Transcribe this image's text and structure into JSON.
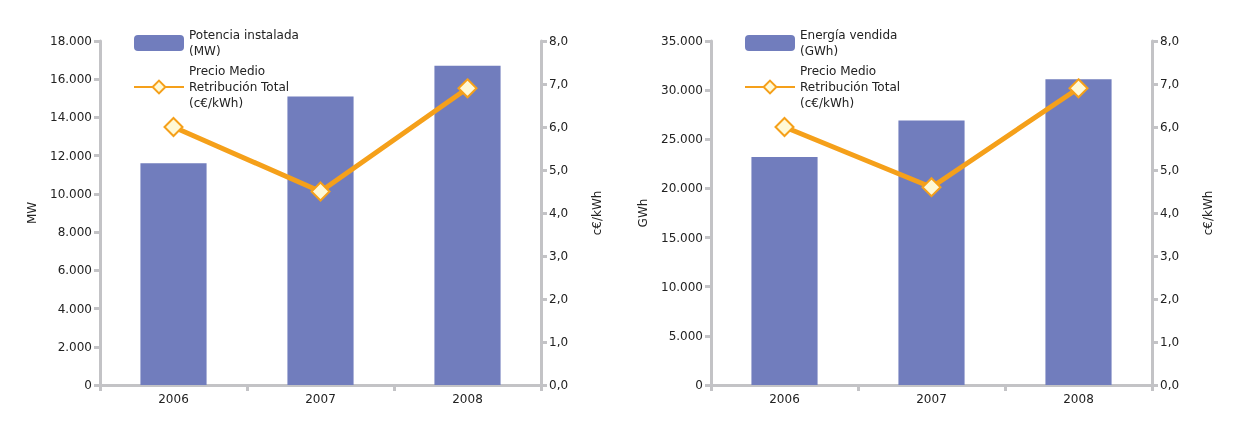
{
  "chart_data": [
    {
      "type": "bar",
      "categories": [
        "2006",
        "2007",
        "2008"
      ],
      "ylabel": "MW",
      "y2label": "c€/kWh",
      "legend": "top left",
      "grid": false,
      "marker": "diamond",
      "ylim": [
        0,
        18000
      ],
      "yticks": [
        {
          "value": 0,
          "label": "0"
        },
        {
          "value": 2000,
          "label": "2.000"
        },
        {
          "value": 4000,
          "label": "4.000"
        },
        {
          "value": 6000,
          "label": "6.000"
        },
        {
          "value": 8000,
          "label": "8.000"
        },
        {
          "value": 10000,
          "label": "10.000"
        },
        {
          "value": 12000,
          "label": "12.000"
        },
        {
          "value": 14000,
          "label": "14.000"
        },
        {
          "value": 16000,
          "label": "16.000"
        },
        {
          "value": 18000,
          "label": "18.000"
        }
      ],
      "y2lim": [
        0,
        8
      ],
      "y2ticks": [
        {
          "value": 0,
          "label": "0,0"
        },
        {
          "value": 1,
          "label": "1,0"
        },
        {
          "value": 2,
          "label": "2,0"
        },
        {
          "value": 3,
          "label": "3,0"
        },
        {
          "value": 4,
          "label": "4,0"
        },
        {
          "value": 5,
          "label": "5,0"
        },
        {
          "value": 6,
          "label": "6,0"
        },
        {
          "value": 7,
          "label": "7,0"
        },
        {
          "value": 8,
          "label": "8,0"
        }
      ],
      "series": [
        {
          "name": "Potencia instalada (MW)",
          "color": "#717dbd",
          "values": [
            11600,
            15100,
            16700
          ]
        },
        {
          "name": "Precio Medio Retribución Total (c€/kWh)",
          "type": "line",
          "axis": "y2",
          "color": "#f5a01a",
          "values": [
            6.0,
            4.5,
            6.9
          ]
        }
      ]
    },
    {
      "type": "bar",
      "categories": [
        "2006",
        "2007",
        "2008"
      ],
      "ylabel": "GWh",
      "y2label": "c€/kWh",
      "legend": "top left",
      "grid": false,
      "marker": "diamond",
      "ylim": [
        0,
        35000
      ],
      "yticks": [
        {
          "value": 0,
          "label": "0"
        },
        {
          "value": 5000,
          "label": "5.000"
        },
        {
          "value": 10000,
          "label": "10.000"
        },
        {
          "value": 15000,
          "label": "15.000"
        },
        {
          "value": 20000,
          "label": "20.000"
        },
        {
          "value": 25000,
          "label": "25.000"
        },
        {
          "value": 30000,
          "label": "30.000"
        },
        {
          "value": 35000,
          "label": "35.000"
        }
      ],
      "y2lim": [
        0,
        8
      ],
      "y2ticks": [
        {
          "value": 0,
          "label": "0,0"
        },
        {
          "value": 1,
          "label": "1,0"
        },
        {
          "value": 2,
          "label": "2,0"
        },
        {
          "value": 3,
          "label": "3,0"
        },
        {
          "value": 4,
          "label": "4,0"
        },
        {
          "value": 5,
          "label": "5,0"
        },
        {
          "value": 6,
          "label": "6,0"
        },
        {
          "value": 7,
          "label": "7,0"
        },
        {
          "value": 8,
          "label": "8,0"
        }
      ],
      "series": [
        {
          "name": "Energía vendida (GWh)",
          "color": "#717dbd",
          "values": [
            23200,
            26900,
            31100
          ]
        },
        {
          "name": "Precio Medio Retribución Total (c€/kWh)",
          "type": "line",
          "axis": "y2",
          "color": "#f5a01a",
          "values": [
            6.0,
            4.6,
            6.9
          ]
        }
      ]
    }
  ]
}
